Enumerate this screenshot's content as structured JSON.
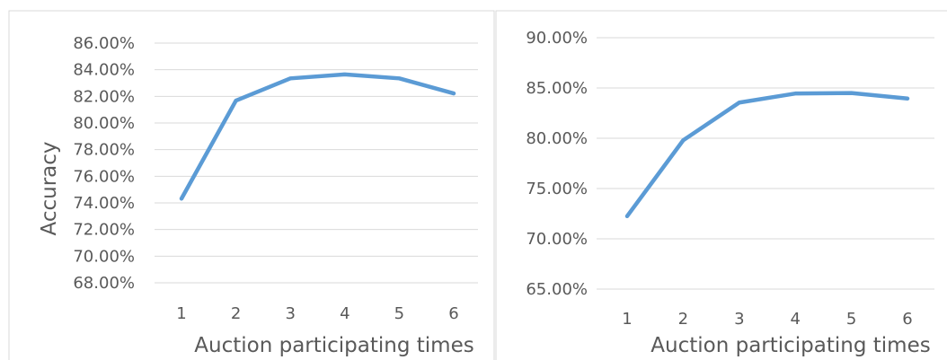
{
  "colors": {
    "line": "#5b9bd5",
    "grid": "#d9d9d9",
    "text": "#595959"
  },
  "chart_data": [
    {
      "type": "line",
      "title": "",
      "xlabel": "Auction participating times",
      "ylabel": "Accuracy",
      "x": [
        "1",
        "2",
        "3",
        "4",
        "5",
        "6"
      ],
      "ylim": [
        0.68,
        0.86
      ],
      "yticks": [
        "86.00%",
        "84.00%",
        "82.00%",
        "80.00%",
        "78.00%",
        "76.00%",
        "74.00%",
        "72.00%",
        "70.00%",
        "68.00%"
      ],
      "ytick_values": [
        0.86,
        0.84,
        0.82,
        0.8,
        0.78,
        0.76,
        0.74,
        0.72,
        0.7,
        0.68
      ],
      "grid": true,
      "series": [
        {
          "values": [
            0.7432,
            0.8168,
            0.8335,
            0.8365,
            0.8335,
            0.8222
          ]
        }
      ]
    },
    {
      "type": "line",
      "title": "",
      "xlabel": "Auction participating times",
      "ylabel": "",
      "x": [
        "1",
        "2",
        "3",
        "4",
        "5",
        "6"
      ],
      "ylim": [
        0.65,
        0.9
      ],
      "yticks": [
        "90.00%",
        "85.00%",
        "80.00%",
        "75.00%",
        "70.00%",
        "65.00%"
      ],
      "ytick_values": [
        0.9,
        0.85,
        0.8,
        0.75,
        0.7,
        0.65
      ],
      "grid": true,
      "series": [
        {
          "values": [
            0.7225,
            0.798,
            0.8355,
            0.8445,
            0.845,
            0.8395
          ]
        }
      ]
    }
  ]
}
